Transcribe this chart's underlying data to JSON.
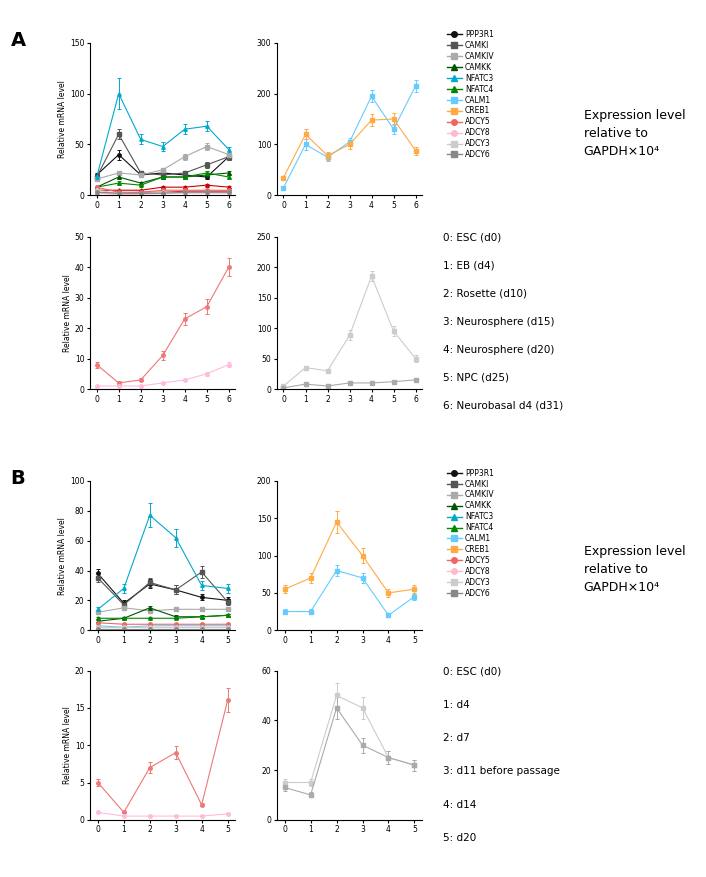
{
  "panel_A": {
    "subplot1": {
      "ylabel": "Relative mRNA level",
      "ylim": [
        0,
        150
      ],
      "xlim": [
        -0.3,
        6.3
      ],
      "xticks": [
        0,
        1,
        2,
        3,
        4,
        5,
        6
      ],
      "yticks": [
        0,
        50,
        100,
        150
      ],
      "series": {
        "PPP3R1": {
          "color": "#111111",
          "marker": "o",
          "data": [
            20,
            40,
            20,
            22,
            20,
            18,
            38
          ],
          "err": [
            2,
            5,
            2,
            2,
            2,
            2,
            3
          ]
        },
        "CAMKI": {
          "color": "#555555",
          "marker": "s",
          "data": [
            18,
            60,
            22,
            20,
            22,
            30,
            38
          ],
          "err": [
            2,
            5,
            2,
            2,
            2,
            3,
            3
          ]
        },
        "CAMKIV": {
          "color": "#aaaaaa",
          "marker": "s",
          "data": [
            16,
            22,
            20,
            25,
            38,
            48,
            40
          ],
          "err": [
            2,
            2,
            2,
            2,
            3,
            3,
            3
          ]
        },
        "CAMKK": {
          "color": "#005500",
          "marker": "^",
          "data": [
            8,
            18,
            12,
            18,
            18,
            20,
            22
          ],
          "err": [
            1,
            2,
            1,
            2,
            2,
            2,
            2
          ]
        },
        "NFATC3": {
          "color": "#00aacc",
          "marker": "^",
          "data": [
            18,
            100,
            55,
            48,
            65,
            68,
            45
          ],
          "err": [
            2,
            15,
            5,
            4,
            5,
            5,
            3
          ]
        },
        "NFATC4": {
          "color": "#008800",
          "marker": "^",
          "data": [
            8,
            12,
            10,
            18,
            18,
            22,
            18
          ],
          "err": [
            1,
            2,
            1,
            2,
            2,
            2,
            2
          ]
        },
        "CALM1": {
          "color": "#cc0000",
          "marker": "^",
          "data": [
            5,
            5,
            5,
            8,
            8,
            10,
            8
          ],
          "err": [
            0.5,
            0.5,
            0.5,
            1,
            1,
            1,
            1
          ]
        },
        "CREB1": {
          "color": "#cc0000",
          "marker": "^",
          "data": [
            3,
            2,
            3,
            3,
            4,
            4,
            4
          ],
          "err": [
            0.3,
            0.3,
            0.3,
            0.3,
            0.4,
            0.4,
            0.4
          ]
        },
        "ADCY5": {
          "color": "#ee6666",
          "marker": "o",
          "data": [
            8,
            3,
            3,
            5,
            5,
            5,
            5
          ],
          "err": [
            1,
            0.5,
            0.5,
            0.5,
            0.5,
            0.5,
            0.5
          ]
        },
        "ADCY8": {
          "color": "#ffbbcc",
          "marker": "o",
          "data": [
            2,
            1,
            1,
            2,
            2,
            2,
            2
          ],
          "err": [
            0.3,
            0.2,
            0.2,
            0.3,
            0.3,
            0.3,
            0.3
          ]
        },
        "ADCY3": {
          "color": "#cccccc",
          "marker": "o",
          "data": [
            5,
            2,
            2,
            3,
            3,
            3,
            3
          ],
          "err": [
            0.5,
            0.3,
            0.3,
            0.4,
            0.4,
            0.4,
            0.4
          ]
        },
        "ADCY6": {
          "color": "#888888",
          "marker": "o",
          "data": [
            3,
            2,
            2,
            2,
            3,
            3,
            3
          ],
          "err": [
            0.3,
            0.3,
            0.3,
            0.3,
            0.4,
            0.4,
            0.4
          ]
        }
      }
    },
    "subplot2": {
      "ylim": [
        0,
        300
      ],
      "xlim": [
        -0.3,
        6.3
      ],
      "xticks": [
        0,
        1,
        2,
        3,
        4,
        5,
        6
      ],
      "yticks": [
        0,
        100,
        200,
        300
      ],
      "series": {
        "CALM1": {
          "color": "#66ccff",
          "marker": "s",
          "data": [
            15,
            100,
            75,
            105,
            195,
            130,
            215
          ],
          "err": [
            2,
            10,
            8,
            8,
            12,
            10,
            12
          ]
        },
        "CREB1": {
          "color": "#ffaa44",
          "marker": "s",
          "data": [
            35,
            120,
            78,
            100,
            148,
            150,
            88
          ],
          "err": [
            3,
            10,
            8,
            8,
            12,
            12,
            8
          ]
        }
      }
    },
    "subplot3": {
      "ylim": [
        0,
        50
      ],
      "xlim": [
        -0.3,
        6.3
      ],
      "xticks": [
        0,
        1,
        2,
        3,
        4,
        5,
        6
      ],
      "yticks": [
        0,
        10,
        20,
        30,
        40,
        50
      ],
      "series": {
        "ADCY5": {
          "color": "#ee7777",
          "marker": "o",
          "data": [
            8,
            2,
            3,
            11,
            23,
            27,
            40
          ],
          "err": [
            1,
            0.5,
            0.5,
            1.5,
            2,
            2.5,
            3
          ]
        },
        "ADCY8": {
          "color": "#ffbbdd",
          "marker": "o",
          "data": [
            1,
            1,
            1,
            2,
            3,
            5,
            8
          ],
          "err": [
            0.2,
            0.2,
            0.2,
            0.3,
            0.4,
            0.6,
            0.8
          ]
        }
      }
    },
    "subplot4": {
      "ylim": [
        0,
        250
      ],
      "xlim": [
        -0.3,
        6.3
      ],
      "xticks": [
        0,
        1,
        2,
        3,
        4,
        5,
        6
      ],
      "yticks": [
        0,
        50,
        100,
        150,
        200,
        250
      ],
      "series": {
        "ADCY3": {
          "color": "#cccccc",
          "marker": "s",
          "data": [
            5,
            35,
            30,
            88,
            185,
            95,
            50
          ],
          "err": [
            0.5,
            3,
            3,
            8,
            8,
            8,
            5
          ]
        },
        "ADCY6": {
          "color": "#aaaaaa",
          "marker": "s",
          "data": [
            2,
            8,
            5,
            10,
            10,
            12,
            15
          ],
          "err": [
            0.3,
            0.8,
            0.5,
            1,
            1,
            1,
            1.5
          ]
        }
      }
    },
    "stage_labels": [
      "0: ESC (d0)",
      "1: EB (d4)",
      "2: Rosette (d10)",
      "3: Neurosphere (d15)",
      "4: Neurosphere (d20)",
      "5: NPC (d25)",
      "6: Neurobasal d4 (d31)"
    ]
  },
  "panel_B": {
    "subplot1": {
      "ylabel": "Relative mRNA level",
      "ylim": [
        0,
        100
      ],
      "xlim": [
        -0.3,
        5.3
      ],
      "xticks": [
        0,
        1,
        2,
        3,
        4,
        5
      ],
      "yticks": [
        0,
        20,
        40,
        60,
        80,
        100
      ],
      "series": {
        "PPP3R1": {
          "color": "#111111",
          "marker": "o",
          "data": [
            38,
            18,
            31,
            27,
            22,
            20
          ],
          "err": [
            3,
            2,
            3,
            3,
            2,
            2
          ]
        },
        "CAMKI": {
          "color": "#555555",
          "marker": "s",
          "data": [
            35,
            17,
            32,
            27,
            39,
            19
          ],
          "err": [
            3,
            2,
            3,
            3,
            4,
            2
          ]
        },
        "CAMKIV": {
          "color": "#aaaaaa",
          "marker": "s",
          "data": [
            12,
            15,
            13,
            14,
            14,
            14
          ],
          "err": [
            1,
            1.5,
            1,
            1,
            1,
            1
          ]
        },
        "CAMKK": {
          "color": "#005500",
          "marker": "^",
          "data": [
            6,
            8,
            15,
            9,
            9,
            10
          ],
          "err": [
            0.6,
            0.8,
            1.5,
            0.9,
            0.9,
            1
          ]
        },
        "NFATC3": {
          "color": "#00aacc",
          "marker": "^",
          "data": [
            14,
            28,
            77,
            62,
            30,
            28
          ],
          "err": [
            1.5,
            3,
            8,
            6,
            3,
            3
          ]
        },
        "NFATC4": {
          "color": "#008800",
          "marker": "^",
          "data": [
            8,
            8,
            8,
            8,
            9,
            10
          ],
          "err": [
            0.8,
            0.8,
            0.8,
            0.8,
            0.9,
            1
          ]
        },
        "CALM1": {
          "color": "#66ccff",
          "marker": "^",
          "data": [
            3,
            2,
            3,
            3,
            3,
            3
          ],
          "err": [
            0.3,
            0.2,
            0.3,
            0.3,
            0.3,
            0.3
          ]
        },
        "CREB1": {
          "color": "#ffaa44",
          "marker": "^",
          "data": [
            2,
            2,
            2,
            2,
            2,
            2
          ],
          "err": [
            0.2,
            0.2,
            0.2,
            0.2,
            0.2,
            0.2
          ]
        },
        "ADCY5": {
          "color": "#ee6666",
          "marker": "o",
          "data": [
            5,
            4,
            4,
            4,
            4,
            4
          ],
          "err": [
            0.5,
            0.4,
            0.4,
            0.4,
            0.4,
            0.4
          ]
        },
        "ADCY8": {
          "color": "#ffbbcc",
          "marker": "o",
          "data": [
            1,
            1,
            1,
            1,
            1,
            1
          ],
          "err": [
            0.1,
            0.1,
            0.1,
            0.1,
            0.1,
            0.1
          ]
        },
        "ADCY3": {
          "color": "#cccccc",
          "marker": "o",
          "data": [
            2,
            2,
            2,
            2,
            2,
            2
          ],
          "err": [
            0.2,
            0.2,
            0.2,
            0.2,
            0.2,
            0.2
          ]
        },
        "ADCY6": {
          "color": "#888888",
          "marker": "o",
          "data": [
            1,
            1,
            1,
            1,
            1,
            1
          ],
          "err": [
            0.1,
            0.1,
            0.1,
            0.1,
            0.1,
            0.1
          ]
        }
      }
    },
    "subplot2": {
      "ylim": [
        0,
        200
      ],
      "xlim": [
        -0.3,
        5.3
      ],
      "xticks": [
        0,
        1,
        2,
        3,
        4,
        5
      ],
      "yticks": [
        0,
        50,
        100,
        150,
        200
      ],
      "series": {
        "CALM1": {
          "color": "#66ccff",
          "marker": "s",
          "data": [
            25,
            25,
            80,
            70,
            20,
            45
          ],
          "err": [
            3,
            3,
            8,
            7,
            2,
            5
          ]
        },
        "CREB1": {
          "color": "#ffaa44",
          "marker": "s",
          "data": [
            55,
            70,
            145,
            100,
            50,
            55
          ],
          "err": [
            5,
            7,
            15,
            10,
            5,
            6
          ]
        }
      }
    },
    "subplot3": {
      "ylim": [
        0,
        20
      ],
      "xlim": [
        -0.3,
        5.3
      ],
      "xticks": [
        0,
        1,
        2,
        3,
        4,
        5
      ],
      "yticks": [
        0,
        5,
        10,
        15,
        20
      ],
      "series": {
        "ADCY5": {
          "color": "#ee7777",
          "marker": "o",
          "data": [
            5,
            1,
            7,
            9,
            2,
            16
          ],
          "err": [
            0.5,
            0.1,
            0.7,
            0.9,
            0.2,
            1.6
          ]
        },
        "ADCY8": {
          "color": "#ffbbdd",
          "marker": "o",
          "data": [
            1,
            0.5,
            0.5,
            0.5,
            0.5,
            0.8
          ],
          "err": [
            0.1,
            0.05,
            0.05,
            0.05,
            0.05,
            0.08
          ]
        }
      }
    },
    "subplot4": {
      "ylim": [
        0,
        60
      ],
      "xlim": [
        -0.3,
        5.3
      ],
      "xticks": [
        0,
        1,
        2,
        3,
        4,
        5
      ],
      "yticks": [
        0,
        20,
        40,
        60
      ],
      "series": {
        "ADCY3": {
          "color": "#cccccc",
          "marker": "s",
          "data": [
            15,
            15,
            50,
            45,
            25,
            22
          ],
          "err": [
            1.5,
            1.5,
            5,
            4.5,
            2.5,
            2.2
          ]
        },
        "ADCY6": {
          "color": "#aaaaaa",
          "marker": "s",
          "data": [
            13,
            10,
            45,
            30,
            25,
            22
          ],
          "err": [
            1.3,
            1,
            4.5,
            3,
            2.5,
            2.2
          ]
        }
      }
    },
    "stage_labels": [
      "0: ESC (d0)",
      "1: d4",
      "2: d7",
      "3: d11 before passage",
      "4: d14",
      "5: d20"
    ]
  },
  "legend_genes": [
    "PPP3R1",
    "CAMKI",
    "CAMKIV",
    "CAMKK",
    "NFATC3",
    "NFATC4",
    "CALM1",
    "CREB1",
    "ADCY5",
    "ADCY8",
    "ADCY3",
    "ADCY6"
  ],
  "legend_colors": [
    "#111111",
    "#555555",
    "#aaaaaa",
    "#005500",
    "#00aacc",
    "#008800",
    "#66ccff",
    "#ffaa44",
    "#ee6666",
    "#ffbbcc",
    "#cccccc",
    "#888888"
  ],
  "legend_markers": [
    "o",
    "s",
    "s",
    "^",
    "^",
    "^",
    "s",
    "s",
    "o",
    "o",
    "s",
    "s"
  ],
  "expression_label_line1": "Expression level",
  "expression_label_line2": "relative to",
  "expression_label_line3": "GAPDH×10⁴"
}
